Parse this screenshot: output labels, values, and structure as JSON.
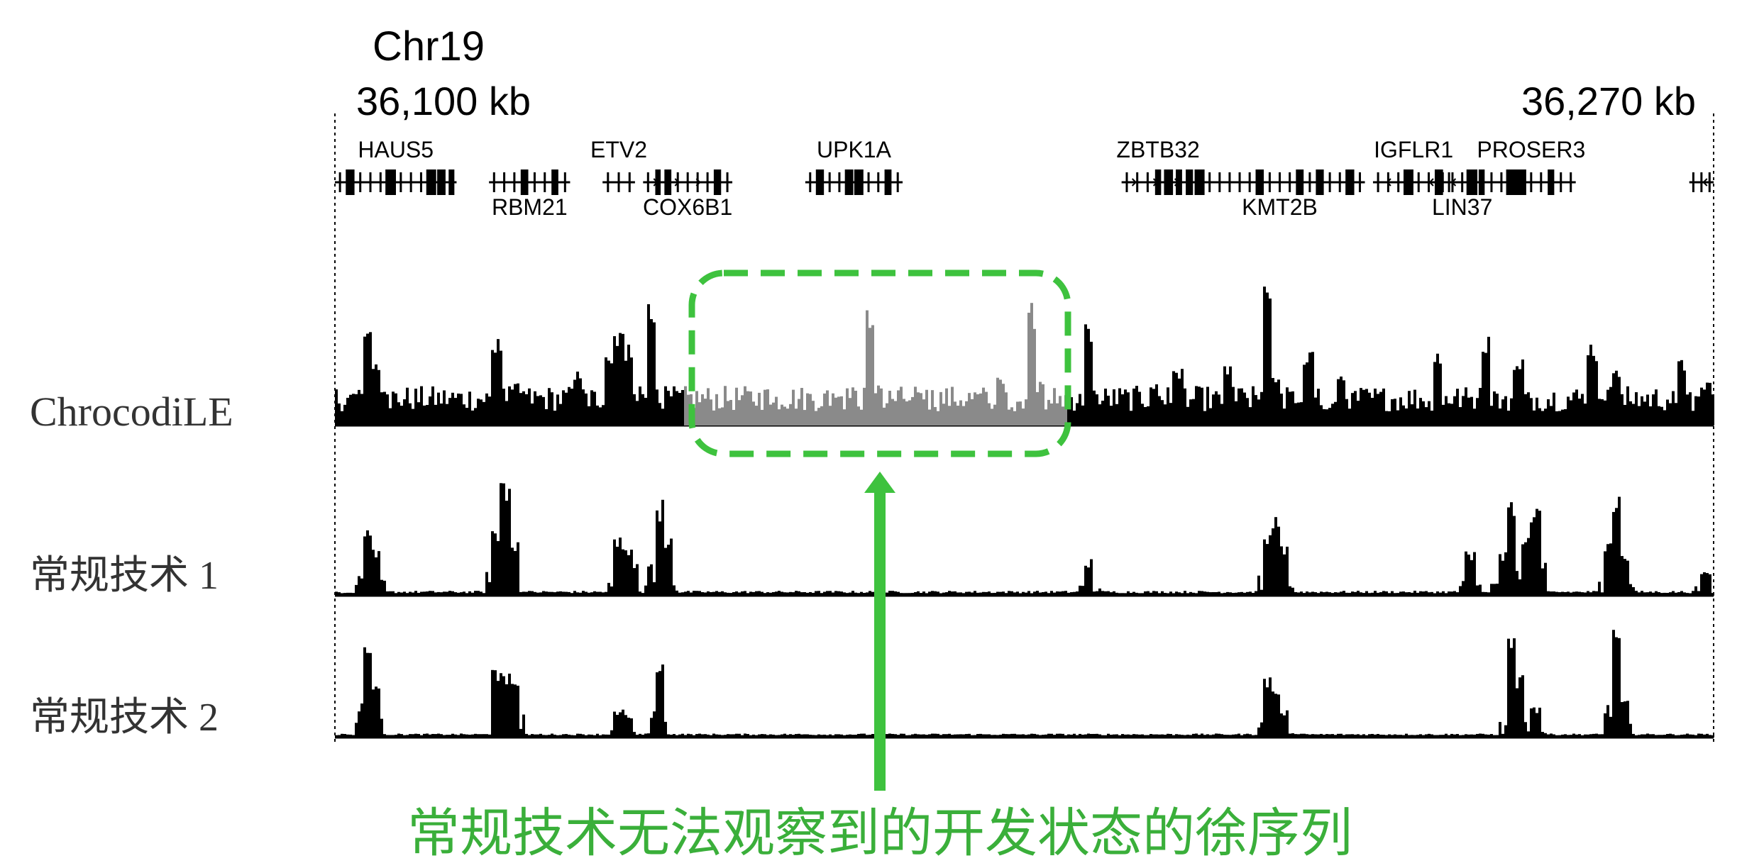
{
  "header": {
    "chromosome": "Chr19",
    "start_label": "36,100 kb",
    "end_label": "36,270 kb"
  },
  "genes": [
    {
      "name": "HAUS5",
      "start": 36100,
      "end": 36115,
      "row": "top",
      "strand": "none"
    },
    {
      "name": "RBM21",
      "start": 36119,
      "end": 36129,
      "row": "bottom",
      "strand": "none"
    },
    {
      "name": "ETV2",
      "start": 36133,
      "end": 36137,
      "row": "top",
      "strand": "none"
    },
    {
      "name": "COX6B1",
      "start": 36138,
      "end": 36149,
      "row": "bottom",
      "strand": "plus"
    },
    {
      "name": "UPK1A",
      "start": 36158,
      "end": 36170,
      "row": "top",
      "strand": "none"
    },
    {
      "name": "ZBTB32",
      "start": 36197,
      "end": 36206,
      "row": "top",
      "strand": "plus"
    },
    {
      "name": "KMT2B",
      "start": 36206,
      "end": 36227,
      "row": "bottom",
      "strand": "none"
    },
    {
      "name": "IGFLR1",
      "start": 36228,
      "end": 36238,
      "row": "top",
      "strand": "minus"
    },
    {
      "name": "LIN37",
      "start": 36236,
      "end": 36242,
      "row": "bottom",
      "strand": "minus"
    },
    {
      "name": "PROSER3",
      "start": 36242,
      "end": 36253,
      "row": "top",
      "strand": "none"
    },
    {
      "name": "",
      "start": 36267,
      "end": 36270,
      "row": "top",
      "strand": "minus"
    }
  ],
  "chart_data": {
    "type": "area",
    "x_range": [
      36100,
      36270
    ],
    "x_unit": "kb",
    "highlight": {
      "start": 36143,
      "end": 36190,
      "label": "常规技术无法观察到的开发状态的徐序列",
      "color": "#3ec23e"
    },
    "tracks": [
      {
        "name": "ChrocodiLE",
        "baseline": 0.1,
        "noise": 0.18,
        "ymax": 1.0,
        "peaks": [
          [
            36104,
            0.78
          ],
          [
            36105,
            0.45
          ],
          [
            36106,
            0.28
          ],
          [
            36120,
            0.62
          ],
          [
            36122,
            0.3
          ],
          [
            36130,
            0.4
          ],
          [
            36134,
            0.55
          ],
          [
            36135,
            0.72
          ],
          [
            36136,
            0.6
          ],
          [
            36139,
            0.92
          ],
          [
            36154,
            0.18
          ],
          [
            36162,
            0.24
          ],
          [
            36166,
            0.82
          ],
          [
            36167,
            0.3
          ],
          [
            36172,
            0.26
          ],
          [
            36186,
            0.9
          ],
          [
            36187,
            0.3
          ],
          [
            36182,
            0.34
          ],
          [
            36193,
            0.75
          ],
          [
            36201,
            0.32
          ],
          [
            36204,
            0.4
          ],
          [
            36210,
            0.45
          ],
          [
            36215,
            1.0
          ],
          [
            36216,
            0.38
          ],
          [
            36220,
            0.55
          ],
          [
            36224,
            0.35
          ],
          [
            36236,
            0.55
          ],
          [
            36242,
            0.68
          ],
          [
            36246,
            0.5
          ],
          [
            36255,
            0.6
          ],
          [
            36258,
            0.45
          ],
          [
            36266,
            0.48
          ],
          [
            36269,
            0.32
          ]
        ]
      },
      {
        "name": "常规技术 1",
        "baseline": 0.02,
        "noise": 0.02,
        "ymax": 1.0,
        "peaks": [
          [
            36104,
            0.6
          ],
          [
            36105,
            0.38
          ],
          [
            36120,
            0.58
          ],
          [
            36121,
            1.0
          ],
          [
            36122,
            0.45
          ],
          [
            36135,
            0.48
          ],
          [
            36136,
            0.38
          ],
          [
            36137,
            0.28
          ],
          [
            36140,
            0.78
          ],
          [
            36141,
            0.5
          ],
          [
            36193,
            0.3
          ],
          [
            36215,
            0.55
          ],
          [
            36216,
            0.68
          ],
          [
            36217,
            0.4
          ],
          [
            36240,
            0.38
          ],
          [
            36244,
            0.35
          ],
          [
            36245,
            0.78
          ],
          [
            36247,
            0.5
          ],
          [
            36248,
            0.76
          ],
          [
            36257,
            0.45
          ],
          [
            36258,
            0.8
          ],
          [
            36259,
            0.35
          ],
          [
            36269,
            0.22
          ]
        ]
      },
      {
        "name": "常规技术 2",
        "baseline": 0.02,
        "noise": 0.015,
        "ymax": 1.0,
        "peaks": [
          [
            36104,
            0.98
          ],
          [
            36105,
            0.5
          ],
          [
            36120,
            0.6
          ],
          [
            36121,
            0.6
          ],
          [
            36122,
            0.6
          ],
          [
            36135,
            0.25
          ],
          [
            36136,
            0.2
          ],
          [
            36140,
            0.7
          ],
          [
            36215,
            0.55
          ],
          [
            36216,
            0.42
          ],
          [
            36217,
            0.25
          ],
          [
            36245,
            0.88
          ],
          [
            36246,
            0.55
          ],
          [
            36248,
            0.28
          ],
          [
            36258,
            0.95
          ],
          [
            36259,
            0.35
          ]
        ]
      }
    ]
  },
  "colors": {
    "signal": "#000000",
    "highlight_signal": "#8a8a8a",
    "highlight_box": "#3ec23e",
    "annotation_text": "#3aaf3a",
    "track_label": "#333333"
  }
}
